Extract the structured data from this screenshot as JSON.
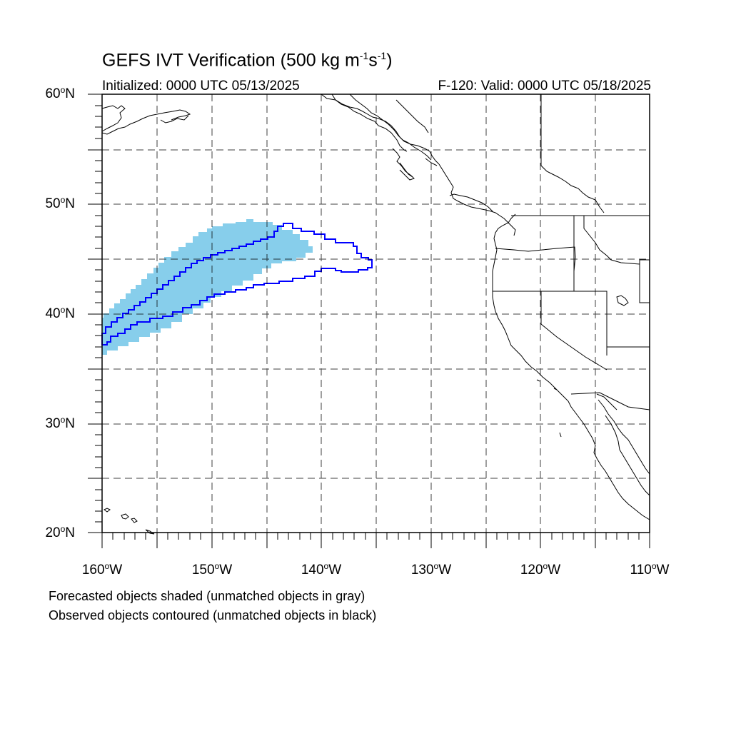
{
  "map": {
    "title_main": "GEFS IVT Verification (500 kg m",
    "title_exp1": "-1",
    "title_mid": "s",
    "title_exp2": "-1",
    "title_end": ")",
    "initialized": "Initialized: 0000 UTC 05/13/2025",
    "valid": "F-120: Valid: 0000 UTC 05/18/2025",
    "lat_labels": [
      {
        "value": "60",
        "suffix": "N"
      },
      {
        "value": "50",
        "suffix": "N"
      },
      {
        "value": "40",
        "suffix": "N"
      },
      {
        "value": "30",
        "suffix": "N"
      },
      {
        "value": "20",
        "suffix": "N"
      }
    ],
    "lon_labels": [
      {
        "value": "160",
        "suffix": "W"
      },
      {
        "value": "150",
        "suffix": "W"
      },
      {
        "value": "140",
        "suffix": "W"
      },
      {
        "value": "130",
        "suffix": "W"
      },
      {
        "value": "120",
        "suffix": "W"
      },
      {
        "value": "110",
        "suffix": "W"
      }
    ],
    "note_forecast": "Forecasted objects shaded (unmatched objects in gray)",
    "note_observed": "Observed objects contoured (unmatched objects in black)",
    "colors": {
      "forecast_fill": "#87ceeb",
      "observed_contour": "#0000ff",
      "coastline": "#000000",
      "grid": "#000000"
    },
    "extent": {
      "lon_min": -160,
      "lon_max": -110,
      "lat_min": 20,
      "lat_max": 60
    }
  }
}
